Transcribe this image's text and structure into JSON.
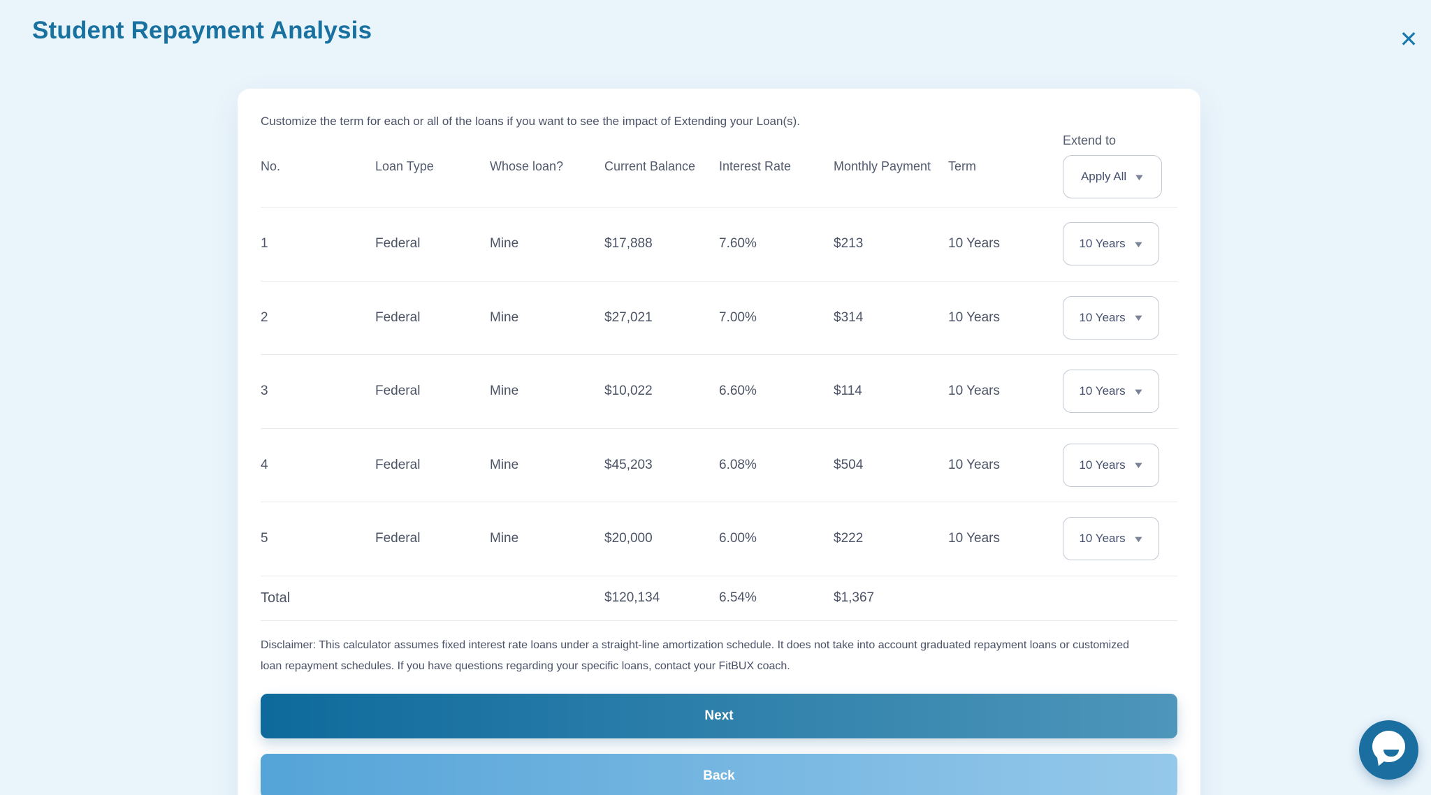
{
  "header": {
    "title": "Student Repayment Analysis",
    "close_icon_glyph": "✕"
  },
  "modal": {
    "intro": "Customize the term for each or all of the loans if you want to see the impact of Extending your Loan(s).",
    "columns": [
      "No.",
      "Loan Type",
      "Whose loan?",
      "Current Balance",
      "Interest Rate",
      "Monthly Payment",
      "Term"
    ],
    "extend_to": {
      "label": "Extend to",
      "selected": "Apply All",
      "caret_glyph": "▼"
    },
    "rows": [
      {
        "no": "1",
        "loan_type": "Federal",
        "whose_loan": "Mine",
        "current_balance": "$17,888",
        "interest_rate": "7.60%",
        "monthly_payment": "$213",
        "term": "10 Years",
        "extend_to": "10 Years"
      },
      {
        "no": "2",
        "loan_type": "Federal",
        "whose_loan": "Mine",
        "current_balance": "$27,021",
        "interest_rate": "7.00%",
        "monthly_payment": "$314",
        "term": "10 Years",
        "extend_to": "10 Years"
      },
      {
        "no": "3",
        "loan_type": "Federal",
        "whose_loan": "Mine",
        "current_balance": "$10,022",
        "interest_rate": "6.60%",
        "monthly_payment": "$114",
        "term": "10 Years",
        "extend_to": "10 Years"
      },
      {
        "no": "4",
        "loan_type": "Federal",
        "whose_loan": "Mine",
        "current_balance": "$45,203",
        "interest_rate": "6.08%",
        "monthly_payment": "$504",
        "term": "10 Years",
        "extend_to": "10 Years"
      },
      {
        "no": "5",
        "loan_type": "Federal",
        "whose_loan": "Mine",
        "current_balance": "$20,000",
        "interest_rate": "6.00%",
        "monthly_payment": "$222",
        "term": "10 Years",
        "extend_to": "10 Years"
      }
    ],
    "total_row": {
      "label": "Total",
      "current_balance": "$120,134",
      "interest_rate": "6.54%",
      "monthly_payment": "$1,367"
    },
    "disclaimer": "Disclaimer: This calculator assumes fixed interest rate loans under a straight-line amortization schedule. It does not take into account graduated repayment loans or customized loan repayment schedules. If you have questions regarding your specific loans, contact your FitBUX coach.",
    "buttons": {
      "next": "Next",
      "back": "Back"
    }
  },
  "chat_widget": {
    "icon": "chat-bubble-icon"
  },
  "colors": {
    "page_background": "#eaf4fb",
    "title": "#19719f",
    "accent_blue": "#1878ac",
    "text_slate": "#4c5466",
    "divider": "#e7e9ed",
    "dropdown_border": "#c2c8d2",
    "next_gradient_start": "#0e6a9c",
    "next_gradient_end": "#4e96ba",
    "back_gradient_start": "#55a4d8",
    "back_gradient_end": "#95c8ea",
    "chat_widget": "#1b6fa0"
  }
}
